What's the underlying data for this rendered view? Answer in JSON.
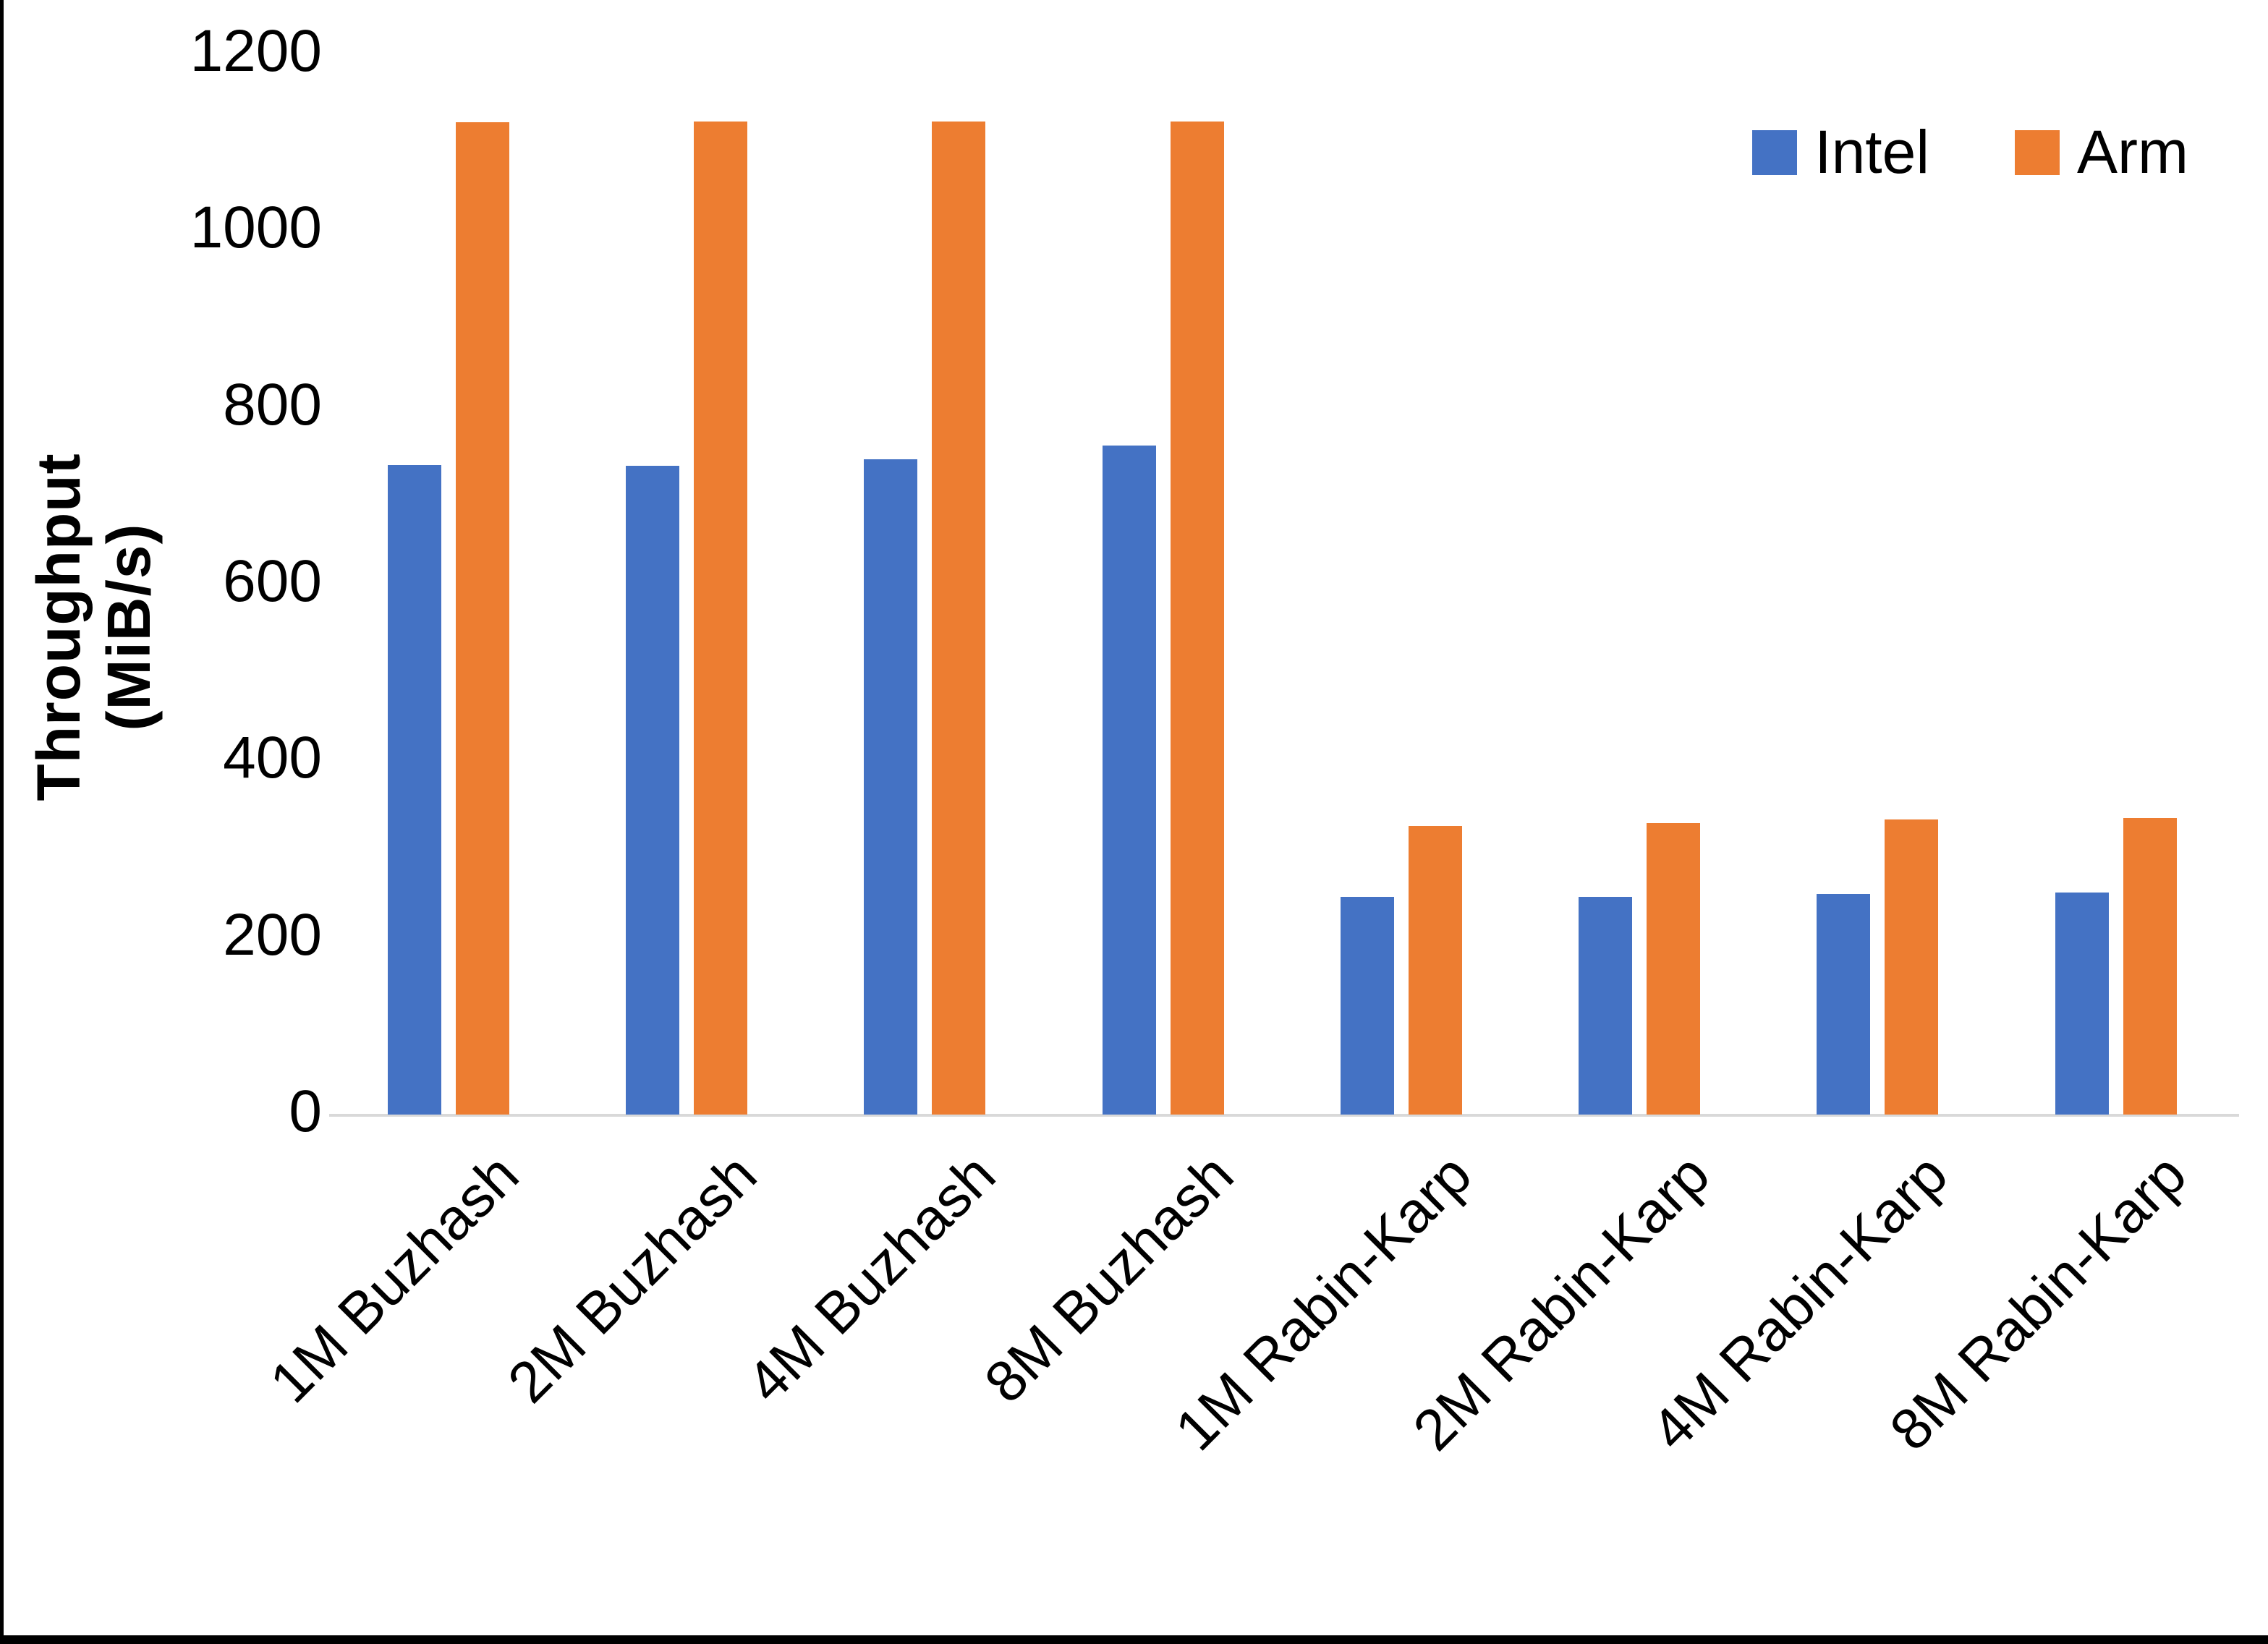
{
  "chart_data": {
    "type": "bar",
    "title": "",
    "ylabel": "Throughput (MiB/s)",
    "categories": [
      "1M Buzhash",
      "2M Buzhash",
      "4M Buzhash",
      "8M Buzhash",
      "1M Rabin-Karp",
      "2M Rabin-Karp",
      "4M Rabin-Karp",
      "8M Rabin-Karp"
    ],
    "series": [
      {
        "name": "Intel",
        "color": "#4472C4",
        "values": [
          735,
          734,
          742,
          757,
          246,
          246,
          250,
          251
        ]
      },
      {
        "name": "Arm",
        "color": "#ED7D31",
        "values": [
          1123,
          1124,
          1124,
          1124,
          327,
          330,
          334,
          336
        ]
      }
    ],
    "ylim": [
      0,
      1200
    ],
    "yticks": [
      0,
      200,
      400,
      600,
      800,
      1000,
      1200
    ],
    "ytick_labels": [
      "0",
      "200",
      "400",
      "600",
      "800",
      "1000",
      "1200"
    ],
    "grid": "off",
    "legend_position": "top-right",
    "axis_line_color": "#D9D9D9",
    "text_color": "#000000"
  }
}
